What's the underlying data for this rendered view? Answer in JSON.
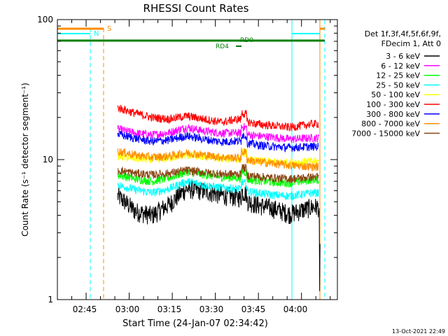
{
  "chart_data": {
    "type": "line",
    "title": "RHESSI Count Rates",
    "xlabel": "Start Time (24-Jan-07 02:34:42)",
    "ylabel": "Count Rate (s⁻¹ detector segment⁻¹)",
    "y_scale": "log",
    "ylim": [
      1,
      100
    ],
    "xlim": [
      "02:35:00",
      "04:12:30"
    ],
    "x_ticks": [
      "02:45",
      "03:00",
      "03:15",
      "03:30",
      "03:45",
      "04:00"
    ],
    "y_ticks": [
      "1",
      "10",
      "100"
    ],
    "legend_position": "top-right",
    "legend_header": [
      "Det 1f,3f,4f,5f,6f,9f,",
      "FDecim 1, Att 0"
    ],
    "series": [
      {
        "name": "3 - 6 keV",
        "color": "#000000",
        "t": [
          "02:56",
          "03:02",
          "03:08",
          "03:14",
          "03:20",
          "03:26",
          "03:32",
          "03:38",
          "03:44",
          "03:50",
          "03:56",
          "04:04"
        ],
        "values": [
          5.5,
          4.3,
          4.0,
          4.8,
          6.2,
          6.0,
          5.6,
          5.4,
          4.8,
          4.5,
          4.1,
          4.6
        ]
      },
      {
        "name": "6 - 12 keV",
        "color": "#ff00ff",
        "t": [
          "02:56",
          "03:02",
          "03:08",
          "03:14",
          "03:20",
          "03:26",
          "03:32",
          "03:38",
          "03:44",
          "03:50",
          "03:56",
          "04:04"
        ],
        "values": [
          16.5,
          15.5,
          15.0,
          15.6,
          17.0,
          16.0,
          15.5,
          15.5,
          14.8,
          14.5,
          14.0,
          14.3
        ]
      },
      {
        "name": "12 - 25 keV",
        "color": "#00ff00",
        "t": [
          "02:56",
          "03:02",
          "03:08",
          "03:14",
          "03:20",
          "03:26",
          "03:32",
          "03:38",
          "03:44",
          "03:50",
          "03:56",
          "04:04"
        ],
        "values": [
          7.8,
          7.3,
          7.0,
          7.4,
          8.2,
          7.8,
          7.5,
          7.4,
          7.1,
          6.9,
          6.8,
          7.2
        ]
      },
      {
        "name": "25 - 50 keV",
        "color": "#00ffff",
        "t": [
          "02:56",
          "03:02",
          "03:08",
          "03:14",
          "03:20",
          "03:26",
          "03:32",
          "03:38",
          "03:44",
          "03:50",
          "03:56",
          "04:04"
        ],
        "values": [
          6.6,
          6.1,
          5.8,
          6.2,
          7.0,
          6.6,
          6.3,
          6.2,
          5.8,
          5.6,
          5.5,
          5.8
        ]
      },
      {
        "name": "50 - 100 keV",
        "color": "#ffff00",
        "t": [
          "02:56",
          "03:02",
          "03:08",
          "03:14",
          "03:20",
          "03:26",
          "03:32",
          "03:38",
          "03:44",
          "03:50",
          "03:56",
          "04:04"
        ],
        "values": [
          10.6,
          10.2,
          10.0,
          10.3,
          10.8,
          10.5,
          10.2,
          10.1,
          9.8,
          9.6,
          9.5,
          9.7
        ]
      },
      {
        "name": "100 - 300 keV",
        "color": "#ff0000",
        "t": [
          "02:56",
          "03:02",
          "03:08",
          "03:14",
          "03:20",
          "03:26",
          "03:32",
          "03:38",
          "03:44",
          "03:50",
          "03:56",
          "04:04"
        ],
        "values": [
          23.5,
          21.5,
          20.0,
          19.5,
          20.5,
          19.5,
          18.5,
          19.5,
          18.0,
          17.5,
          17.0,
          18.0
        ]
      },
      {
        "name": "300 - 800 keV",
        "color": "#0000ff",
        "t": [
          "02:56",
          "03:02",
          "03:08",
          "03:14",
          "03:20",
          "03:26",
          "03:32",
          "03:38",
          "03:44",
          "03:50",
          "03:56",
          "04:04"
        ],
        "values": [
          15.2,
          14.2,
          13.5,
          13.8,
          14.8,
          14.0,
          13.4,
          13.6,
          12.8,
          12.4,
          12.2,
          12.4
        ]
      },
      {
        "name": "800 - 7000 keV",
        "color": "#ff8c00",
        "t": [
          "02:56",
          "03:02",
          "03:08",
          "03:14",
          "03:20",
          "03:26",
          "03:32",
          "03:38",
          "03:44",
          "03:50",
          "03:56",
          "04:04"
        ],
        "values": [
          11.5,
          10.8,
          10.4,
          10.6,
          11.2,
          10.8,
          10.4,
          10.3,
          9.7,
          9.4,
          9.1,
          8.9
        ]
      },
      {
        "name": "7000 - 15000 keV",
        "color": "#8b4513",
        "t": [
          "02:56",
          "03:02",
          "03:08",
          "03:14",
          "03:20",
          "03:26",
          "03:32",
          "03:38",
          "03:44",
          "03:50",
          "03:56",
          "04:04"
        ],
        "values": [
          8.4,
          8.0,
          7.8,
          8.0,
          8.4,
          8.1,
          7.9,
          7.9,
          7.6,
          7.4,
          7.3,
          7.5
        ]
      }
    ],
    "annotations": [
      {
        "text": "S",
        "color": "#ff8c00"
      },
      {
        "text": "N",
        "color": "#00ffff"
      },
      {
        "text": "RD0",
        "color": "#008000"
      },
      {
        "text": "RD4",
        "color": "#008000"
      }
    ],
    "footer": "13-Oct-2021 22:49"
  }
}
